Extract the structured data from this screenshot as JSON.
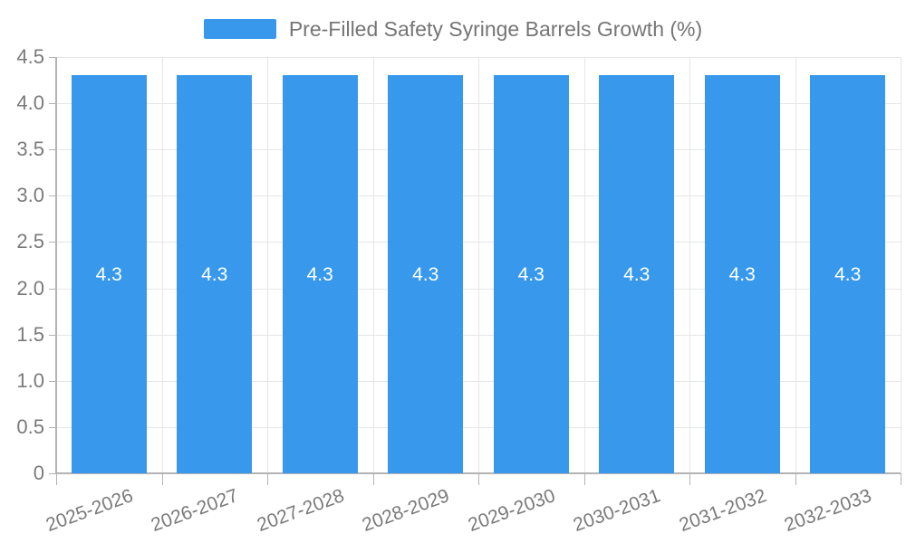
{
  "chart_data": {
    "type": "bar",
    "title": "",
    "legend": "Pre-Filled Safety Syringe Barrels Growth (%)",
    "legend_position": "top-center",
    "categories": [
      "2025-2026",
      "2026-2027",
      "2027-2028",
      "2028-2029",
      "2029-2030",
      "2030-2031",
      "2031-2032",
      "2032-2033"
    ],
    "series": [
      {
        "name": "Pre-Filled Safety Syringe Barrels Growth (%)",
        "values": [
          4.3,
          4.3,
          4.3,
          4.3,
          4.3,
          4.3,
          4.3,
          4.3
        ]
      }
    ],
    "data_labels": [
      "4.3",
      "4.3",
      "4.3",
      "4.3",
      "4.3",
      "4.3",
      "4.3",
      "4.3"
    ],
    "xlabel": "",
    "ylabel": "",
    "ylim": [
      0,
      4.5
    ],
    "ytick_step": 0.5,
    "yticks": [
      "0",
      "0.5",
      "1.0",
      "1.5",
      "2.0",
      "2.5",
      "3.0",
      "3.5",
      "4.0",
      "4.5"
    ],
    "grid": true,
    "colors": {
      "bar": "#3899EC",
      "grid": "#E6E6E6",
      "axis": "#B3B3B3",
      "tick": "#B3B3B3",
      "axis_label_text": "#7A7A7A",
      "legend_text": "#757575",
      "data_label_text": "#FFFFFF",
      "background": "#FFFFFF"
    }
  }
}
